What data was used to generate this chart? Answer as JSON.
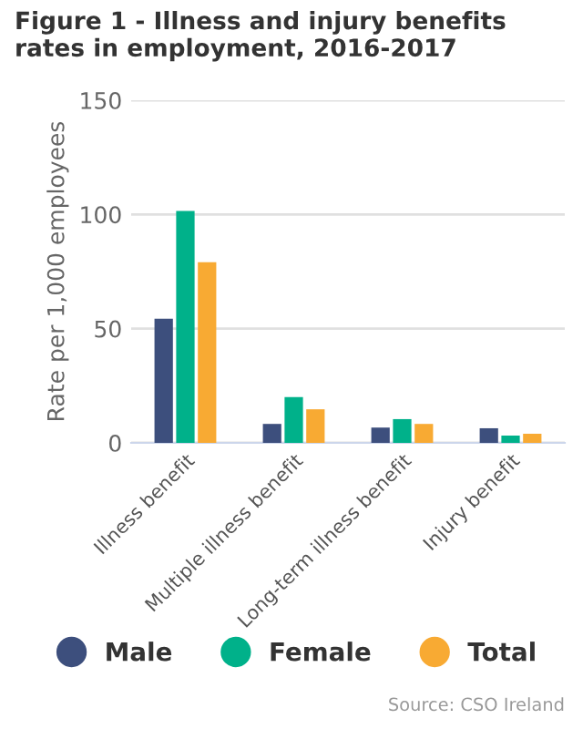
{
  "chart_data": {
    "type": "bar",
    "title": "Figure 1 - Illness and injury benefits rates in employment, 2016-2017",
    "ylabel": "Rate per 1,000 employees",
    "categories": [
      "Illness benefit",
      "Multiple illness benefit",
      "Long-term illness benefit",
      "Injury benefit"
    ],
    "series": [
      {
        "name": "Male",
        "color": "#3d4f7d",
        "values": [
          54.4,
          8.3,
          6.7,
          6.4
        ]
      },
      {
        "name": "Female",
        "color": "#00b18a",
        "values": [
          101.5,
          20,
          10.4,
          3.2
        ]
      },
      {
        "name": "Total",
        "color": "#f8aa33",
        "values": [
          79.1,
          14.7,
          8.3,
          4.0
        ]
      }
    ],
    "ylim": [
      0,
      150
    ],
    "yticks": [
      0,
      50,
      100,
      150
    ],
    "grid": "y",
    "legend": "bottom",
    "annotations": [
      "Source: CSO Ireland"
    ]
  }
}
